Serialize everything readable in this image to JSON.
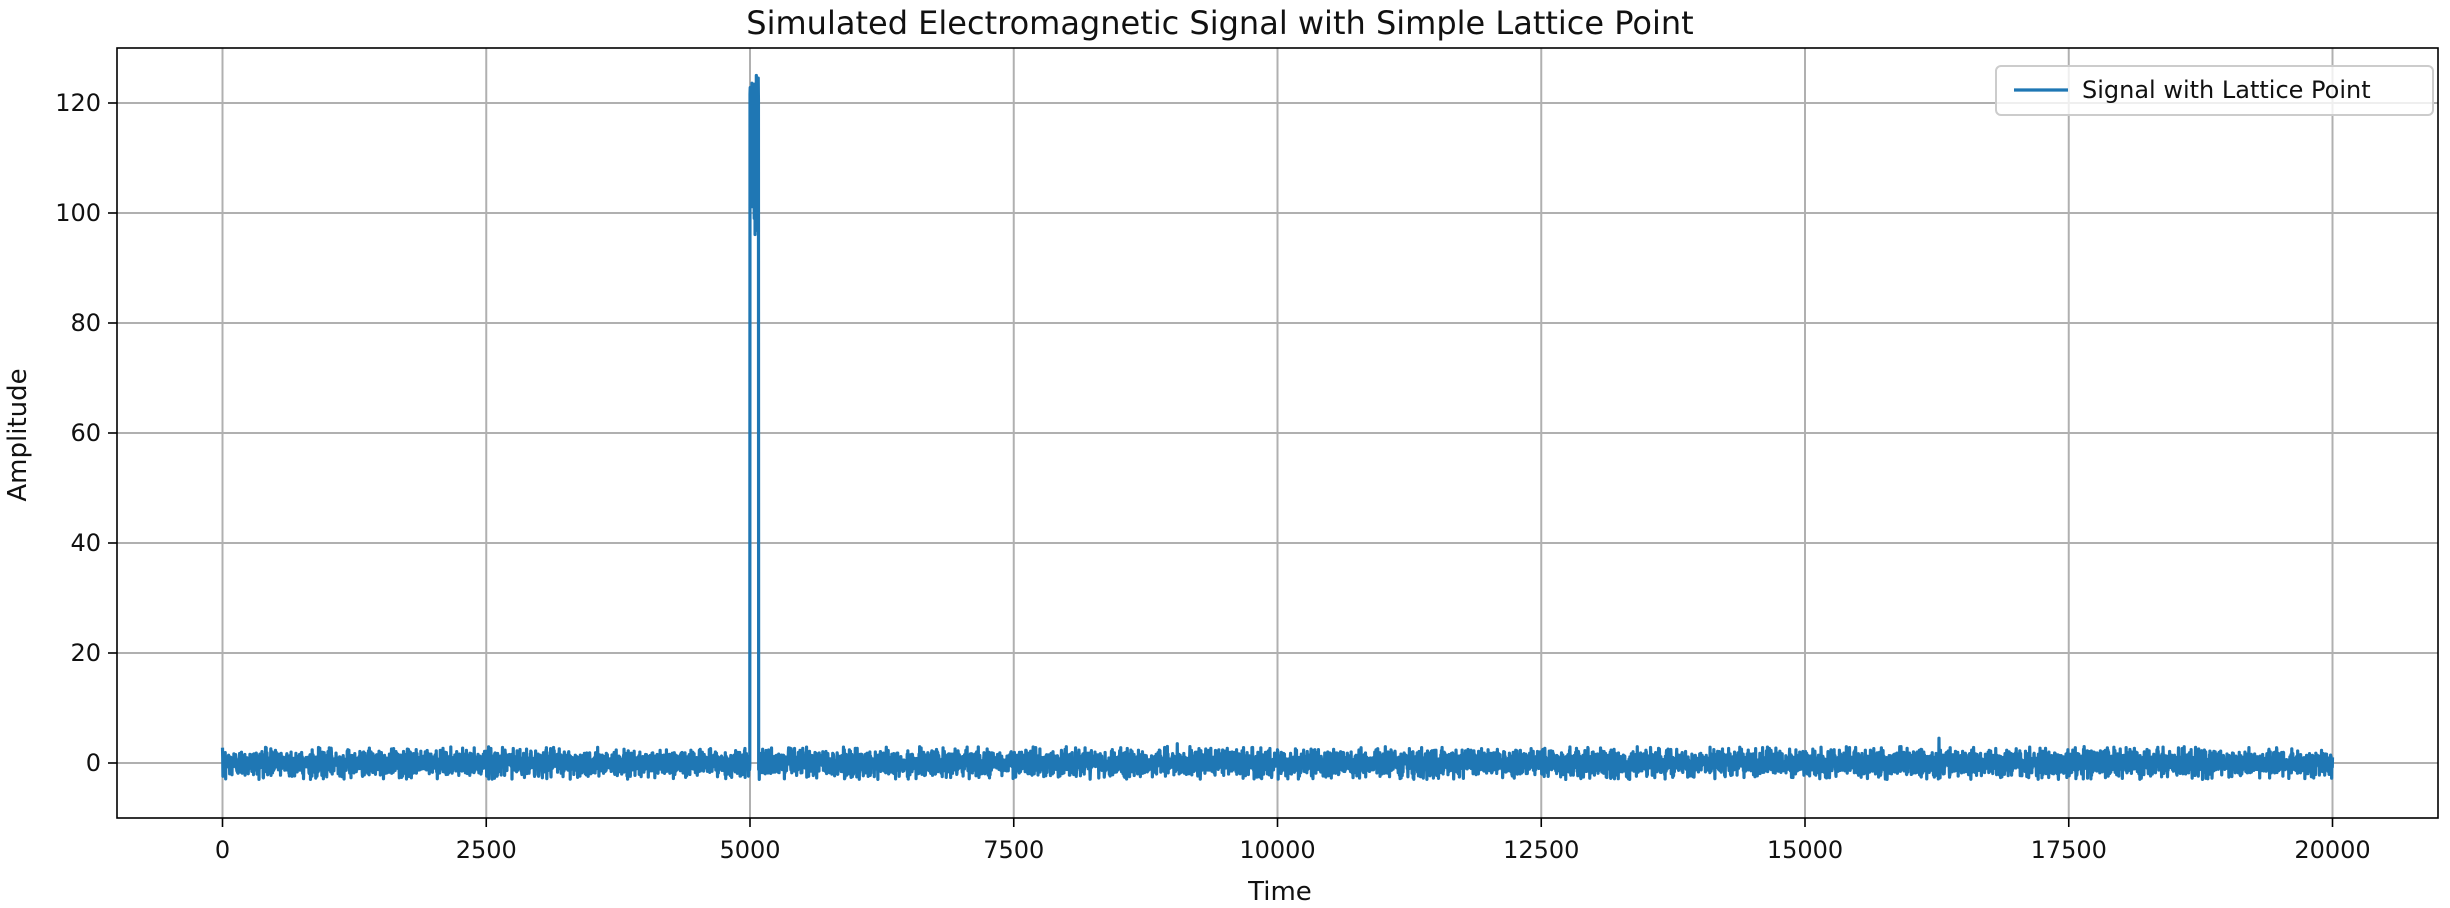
{
  "chart_data": {
    "type": "line",
    "title": "Simulated Electromagnetic Signal with Simple Lattice Point",
    "xlabel": "Time",
    "ylabel": "Amplitude",
    "xlim": [
      -1000,
      21000
    ],
    "ylim": [
      -10,
      130
    ],
    "x_ticks": [
      0,
      2500,
      5000,
      7500,
      10000,
      12500,
      15000,
      17500,
      20000
    ],
    "y_ticks": [
      0,
      20,
      40,
      60,
      80,
      100,
      120
    ],
    "grid": true,
    "legend_position": "top-right",
    "series": [
      {
        "name": "Signal with Lattice Point",
        "color": "#1f77b4",
        "x_range": [
          0,
          20000
        ],
        "baseline_mean": 0,
        "baseline_range": [
          -3,
          3
        ],
        "spike": {
          "x_range": [
            5000,
            5080
          ],
          "y_range": [
            95,
            125
          ],
          "peak_x": 5060,
          "peak_y": 125
        },
        "minor_peaks": [
          {
            "x": 16270,
            "y": 4.5
          },
          {
            "x": 9050,
            "y": 3.5
          }
        ]
      }
    ]
  }
}
